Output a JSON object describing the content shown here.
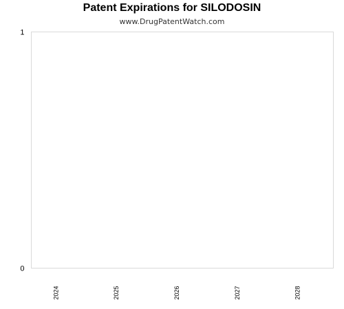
{
  "chart_data": {
    "type": "bar",
    "title": "Patent Expirations for SILODOSIN",
    "subtitle": "www.DrugPatentWatch.com",
    "categories": [
      "2024",
      "2025",
      "2026",
      "2027",
      "2028"
    ],
    "values": [
      0,
      0,
      0,
      0,
      0
    ],
    "xlabel": "",
    "ylabel": "",
    "ylim": [
      0,
      1
    ],
    "yticks": [
      "0",
      "1"
    ],
    "grid": false,
    "legend": "none",
    "colors": {
      "plot_border": "#d9d9d9",
      "tick_text": "#000000"
    }
  }
}
